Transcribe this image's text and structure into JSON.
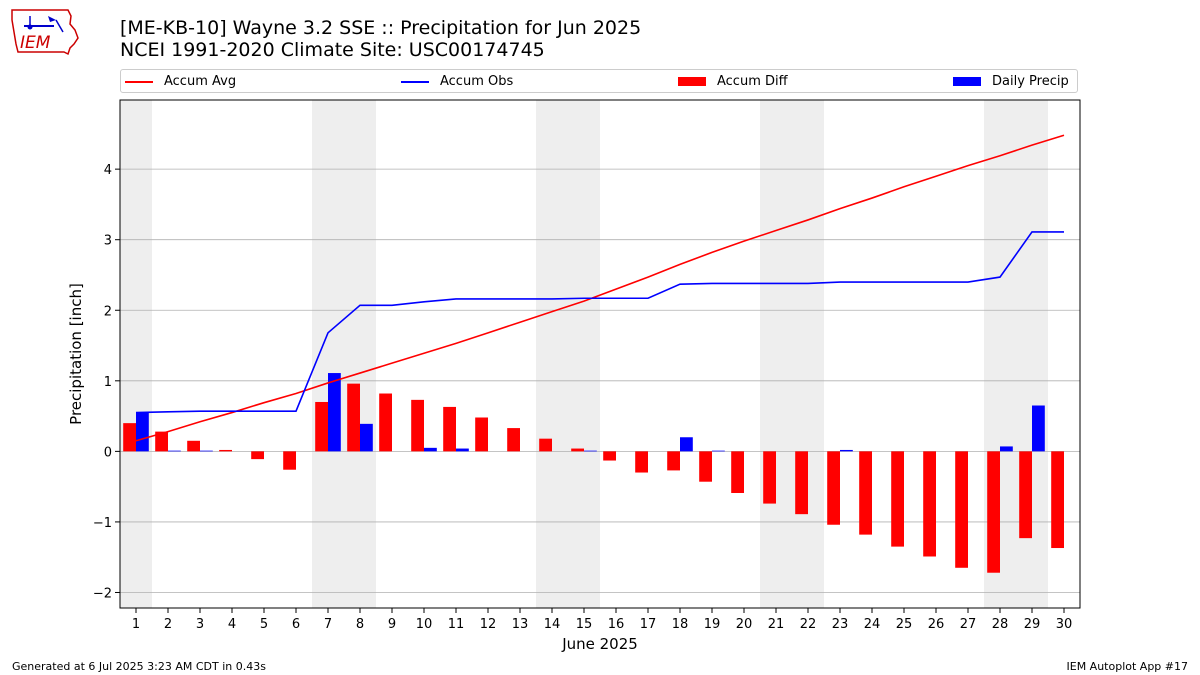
{
  "header": {
    "title_line1": "[ME-KB-10] Wayne 3.2 SSE :: Precipitation for Jun 2025",
    "title_line2": "NCEI 1991-2020 Climate Site: USC00174745"
  },
  "logo": {
    "text": "IEM",
    "color": "#cc0000"
  },
  "legend": {
    "placement": "top, spanning width",
    "items": [
      {
        "label": "Accum Avg",
        "type": "line",
        "color": "#ff0000"
      },
      {
        "label": "Accum Obs",
        "type": "line",
        "color": "#0000ff"
      },
      {
        "label": "Accum Diff",
        "type": "bar",
        "color": "#ff0000"
      },
      {
        "label": "Daily Precip",
        "type": "bar",
        "color": "#0000ff"
      }
    ]
  },
  "footer": {
    "left": "Generated at 6 Jul 2025 3:23 AM CDT in 0.43s",
    "right": "IEM Autoplot App #17"
  },
  "chart_data": {
    "type": "bar",
    "xlabel": "June 2025",
    "ylabel": "Precipitation [inch]",
    "xlim": [
      0.5,
      30.5
    ],
    "ylim": [
      -2.22,
      4.98
    ],
    "yticks": [
      -2,
      -1,
      0,
      1,
      2,
      3,
      4
    ],
    "ytick_labels": [
      "−2",
      "−1",
      "0",
      "1",
      "2",
      "3",
      "4"
    ],
    "grid": "horizontal",
    "weekend_shading_color": "#eeeeee",
    "weekend_days": [
      1,
      7,
      8,
      14,
      15,
      21,
      22,
      28,
      29
    ],
    "categories": [
      "1",
      "2",
      "3",
      "4",
      "5",
      "6",
      "7",
      "8",
      "9",
      "10",
      "11",
      "12",
      "13",
      "14",
      "15",
      "16",
      "17",
      "18",
      "19",
      "20",
      "21",
      "22",
      "23",
      "24",
      "25",
      "26",
      "27",
      "28",
      "29",
      "30"
    ],
    "series": [
      {
        "name": "Accum Diff",
        "type": "bar",
        "color": "#ff0000",
        "values": [
          0.4,
          0.28,
          0.15,
          0.02,
          -0.11,
          -0.26,
          0.7,
          0.96,
          0.82,
          0.73,
          0.63,
          0.48,
          0.33,
          0.18,
          0.04,
          -0.13,
          -0.3,
          -0.27,
          -0.43,
          -0.59,
          -0.74,
          -0.89,
          -1.04,
          -1.18,
          -1.35,
          -1.49,
          -1.65,
          -1.72,
          -1.23,
          -1.37
        ]
      },
      {
        "name": "Daily Precip",
        "type": "bar",
        "color": "#0000ff",
        "values": [
          0.55,
          0.01,
          0.01,
          0.0,
          0.0,
          0.0,
          1.11,
          0.39,
          0.0,
          0.05,
          0.04,
          0.0,
          0.0,
          0.0,
          0.01,
          0.0,
          0.0,
          0.2,
          0.01,
          0.0,
          0.0,
          0.0,
          0.02,
          0.0,
          0.0,
          0.0,
          0.0,
          0.07,
          0.65,
          0.0
        ]
      },
      {
        "name": "Accum Avg",
        "type": "line",
        "color": "#ff0000",
        "values": [
          0.15,
          0.28,
          0.42,
          0.55,
          0.69,
          0.82,
          0.97,
          1.11,
          1.25,
          1.39,
          1.53,
          1.68,
          1.83,
          1.98,
          2.13,
          2.3,
          2.47,
          2.65,
          2.82,
          2.98,
          3.13,
          3.28,
          3.44,
          3.59,
          3.75,
          3.9,
          4.05,
          4.19,
          4.34,
          4.48
        ]
      },
      {
        "name": "Accum Obs",
        "type": "line",
        "color": "#0000ff",
        "values": [
          0.55,
          0.56,
          0.57,
          0.57,
          0.57,
          0.57,
          1.68,
          2.07,
          2.07,
          2.12,
          2.16,
          2.16,
          2.16,
          2.16,
          2.17,
          2.17,
          2.17,
          2.37,
          2.38,
          2.38,
          2.38,
          2.38,
          2.4,
          2.4,
          2.4,
          2.4,
          2.4,
          2.47,
          3.11,
          3.11
        ]
      }
    ]
  }
}
